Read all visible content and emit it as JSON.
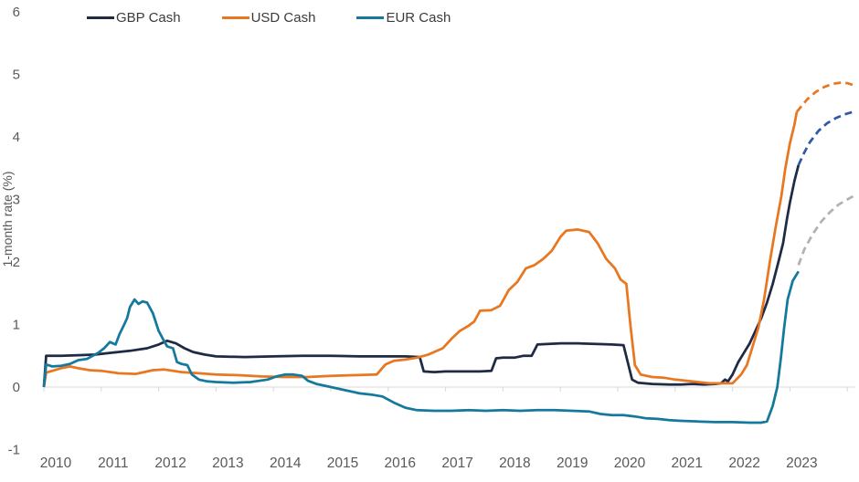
{
  "colors": {
    "gbp": "#1f2b45",
    "usd": "#e87722",
    "eur": "#15799d",
    "gbp_forecast": "#2e5aa7",
    "usd_forecast": "#e87722",
    "eur_forecast": "#b2b2b2",
    "grid": "#d9d9d9",
    "axis_text": "#595959",
    "legend_text": "#3b3b3b"
  },
  "chart_data": {
    "type": "line",
    "title": "",
    "xlabel": "",
    "ylabel": "1-month rate (%)",
    "ylim": [
      -1,
      6
    ],
    "xlim": [
      2010,
      2024.2
    ],
    "y_ticks": [
      6,
      5,
      4,
      3,
      2,
      1,
      0,
      -1
    ],
    "x_ticks": [
      2010,
      2011,
      2012,
      2013,
      2014,
      2015,
      2016,
      2017,
      2018,
      2019,
      2020,
      2021,
      2022,
      2023
    ],
    "grid": "horizontal zero-line only, light gray, with small year tick marks below it",
    "legend_position": "top-left, horizontal",
    "note_style": "solid lines are history; dashed lines from early 2023 onward are forecasts (GBP forecast in blue, USD forecast in orange, EUR forecast in gray)",
    "series": [
      {
        "id": "gbp-cash",
        "name": "GBP Cash",
        "color": "#1f2b45",
        "style": "solid",
        "points": [
          [
            2010.0,
            0.0
          ],
          [
            2010.04,
            0.5
          ],
          [
            2010.3,
            0.5
          ],
          [
            2010.6,
            0.51
          ],
          [
            2010.9,
            0.52
          ],
          [
            2011.2,
            0.55
          ],
          [
            2011.5,
            0.58
          ],
          [
            2011.8,
            0.62
          ],
          [
            2012.0,
            0.68
          ],
          [
            2012.15,
            0.74
          ],
          [
            2012.3,
            0.7
          ],
          [
            2012.45,
            0.62
          ],
          [
            2012.6,
            0.56
          ],
          [
            2012.8,
            0.52
          ],
          [
            2013.0,
            0.49
          ],
          [
            2013.5,
            0.48
          ],
          [
            2014.0,
            0.49
          ],
          [
            2014.5,
            0.5
          ],
          [
            2015.0,
            0.5
          ],
          [
            2015.5,
            0.49
          ],
          [
            2016.0,
            0.49
          ],
          [
            2016.3,
            0.49
          ],
          [
            2016.55,
            0.48
          ],
          [
            2016.62,
            0.25
          ],
          [
            2016.8,
            0.24
          ],
          [
            2017.0,
            0.25
          ],
          [
            2017.3,
            0.25
          ],
          [
            2017.6,
            0.25
          ],
          [
            2017.8,
            0.26
          ],
          [
            2017.88,
            0.46
          ],
          [
            2018.0,
            0.47
          ],
          [
            2018.2,
            0.47
          ],
          [
            2018.35,
            0.5
          ],
          [
            2018.5,
            0.5
          ],
          [
            2018.6,
            0.68
          ],
          [
            2018.8,
            0.69
          ],
          [
            2019.0,
            0.7
          ],
          [
            2019.3,
            0.7
          ],
          [
            2019.6,
            0.69
          ],
          [
            2019.9,
            0.68
          ],
          [
            2020.1,
            0.67
          ],
          [
            2020.2,
            0.3
          ],
          [
            2020.25,
            0.12
          ],
          [
            2020.35,
            0.07
          ],
          [
            2020.6,
            0.05
          ],
          [
            2020.9,
            0.04
          ],
          [
            2021.1,
            0.04
          ],
          [
            2021.3,
            0.05
          ],
          [
            2021.5,
            0.04
          ],
          [
            2021.7,
            0.05
          ],
          [
            2021.8,
            0.06
          ],
          [
            2021.87,
            0.12
          ],
          [
            2021.92,
            0.09
          ],
          [
            2022.0,
            0.2
          ],
          [
            2022.1,
            0.4
          ],
          [
            2022.2,
            0.55
          ],
          [
            2022.3,
            0.7
          ],
          [
            2022.4,
            0.9
          ],
          [
            2022.5,
            1.1
          ],
          [
            2022.6,
            1.35
          ],
          [
            2022.7,
            1.65
          ],
          [
            2022.8,
            2.0
          ],
          [
            2022.88,
            2.3
          ],
          [
            2022.95,
            2.7
          ],
          [
            2023.0,
            2.95
          ],
          [
            2023.08,
            3.3
          ],
          [
            2023.15,
            3.55
          ]
        ]
      },
      {
        "id": "usd-cash",
        "name": "USD Cash",
        "color": "#e87722",
        "style": "solid",
        "points": [
          [
            2010.0,
            0.0
          ],
          [
            2010.04,
            0.23
          ],
          [
            2010.15,
            0.26
          ],
          [
            2010.3,
            0.3
          ],
          [
            2010.45,
            0.33
          ],
          [
            2010.6,
            0.3
          ],
          [
            2010.8,
            0.27
          ],
          [
            2011.0,
            0.26
          ],
          [
            2011.3,
            0.22
          ],
          [
            2011.6,
            0.21
          ],
          [
            2011.9,
            0.27
          ],
          [
            2012.1,
            0.28
          ],
          [
            2012.4,
            0.24
          ],
          [
            2012.7,
            0.22
          ],
          [
            2013.0,
            0.2
          ],
          [
            2013.4,
            0.19
          ],
          [
            2013.8,
            0.17
          ],
          [
            2014.2,
            0.16
          ],
          [
            2014.6,
            0.16
          ],
          [
            2015.0,
            0.18
          ],
          [
            2015.4,
            0.19
          ],
          [
            2015.8,
            0.2
          ],
          [
            2015.95,
            0.36
          ],
          [
            2016.1,
            0.42
          ],
          [
            2016.3,
            0.44
          ],
          [
            2016.5,
            0.47
          ],
          [
            2016.7,
            0.52
          ],
          [
            2016.95,
            0.62
          ],
          [
            2017.1,
            0.77
          ],
          [
            2017.25,
            0.9
          ],
          [
            2017.4,
            0.98
          ],
          [
            2017.5,
            1.05
          ],
          [
            2017.6,
            1.22
          ],
          [
            2017.8,
            1.23
          ],
          [
            2017.95,
            1.3
          ],
          [
            2018.1,
            1.55
          ],
          [
            2018.25,
            1.68
          ],
          [
            2018.4,
            1.9
          ],
          [
            2018.55,
            1.95
          ],
          [
            2018.7,
            2.05
          ],
          [
            2018.85,
            2.18
          ],
          [
            2019.0,
            2.4
          ],
          [
            2019.1,
            2.5
          ],
          [
            2019.3,
            2.52
          ],
          [
            2019.5,
            2.48
          ],
          [
            2019.65,
            2.3
          ],
          [
            2019.8,
            2.05
          ],
          [
            2019.95,
            1.9
          ],
          [
            2020.05,
            1.72
          ],
          [
            2020.15,
            1.65
          ],
          [
            2020.22,
            1.0
          ],
          [
            2020.3,
            0.35
          ],
          [
            2020.4,
            0.2
          ],
          [
            2020.6,
            0.16
          ],
          [
            2020.8,
            0.15
          ],
          [
            2021.0,
            0.12
          ],
          [
            2021.2,
            0.1
          ],
          [
            2021.4,
            0.08
          ],
          [
            2021.6,
            0.06
          ],
          [
            2021.8,
            0.06
          ],
          [
            2022.0,
            0.06
          ],
          [
            2022.15,
            0.2
          ],
          [
            2022.25,
            0.35
          ],
          [
            2022.35,
            0.65
          ],
          [
            2022.45,
            0.95
          ],
          [
            2022.55,
            1.4
          ],
          [
            2022.65,
            2.0
          ],
          [
            2022.75,
            2.55
          ],
          [
            2022.85,
            3.05
          ],
          [
            2022.92,
            3.5
          ],
          [
            2023.0,
            3.9
          ],
          [
            2023.08,
            4.2
          ],
          [
            2023.12,
            4.4
          ]
        ]
      },
      {
        "id": "eur-cash",
        "name": "EUR Cash",
        "color": "#15799d",
        "style": "solid",
        "points": [
          [
            2010.0,
            0.0
          ],
          [
            2010.04,
            0.36
          ],
          [
            2010.15,
            0.33
          ],
          [
            2010.3,
            0.34
          ],
          [
            2010.45,
            0.37
          ],
          [
            2010.6,
            0.43
          ],
          [
            2010.75,
            0.45
          ],
          [
            2010.85,
            0.5
          ],
          [
            2010.95,
            0.55
          ],
          [
            2011.05,
            0.62
          ],
          [
            2011.15,
            0.72
          ],
          [
            2011.25,
            0.68
          ],
          [
            2011.32,
            0.85
          ],
          [
            2011.4,
            1.0
          ],
          [
            2011.45,
            1.1
          ],
          [
            2011.5,
            1.28
          ],
          [
            2011.58,
            1.4
          ],
          [
            2011.65,
            1.33
          ],
          [
            2011.72,
            1.37
          ],
          [
            2011.8,
            1.35
          ],
          [
            2011.9,
            1.18
          ],
          [
            2012.0,
            0.9
          ],
          [
            2012.08,
            0.76
          ],
          [
            2012.15,
            0.65
          ],
          [
            2012.25,
            0.62
          ],
          [
            2012.32,
            0.4
          ],
          [
            2012.4,
            0.37
          ],
          [
            2012.5,
            0.35
          ],
          [
            2012.58,
            0.2
          ],
          [
            2012.7,
            0.12
          ],
          [
            2012.85,
            0.09
          ],
          [
            2013.0,
            0.08
          ],
          [
            2013.3,
            0.07
          ],
          [
            2013.6,
            0.08
          ],
          [
            2013.9,
            0.12
          ],
          [
            2014.05,
            0.17
          ],
          [
            2014.2,
            0.2
          ],
          [
            2014.35,
            0.2
          ],
          [
            2014.5,
            0.18
          ],
          [
            2014.6,
            0.1
          ],
          [
            2014.75,
            0.05
          ],
          [
            2014.9,
            0.02
          ],
          [
            2015.1,
            -0.02
          ],
          [
            2015.3,
            -0.06
          ],
          [
            2015.5,
            -0.1
          ],
          [
            2015.7,
            -0.12
          ],
          [
            2015.9,
            -0.15
          ],
          [
            2016.1,
            -0.25
          ],
          [
            2016.3,
            -0.33
          ],
          [
            2016.5,
            -0.37
          ],
          [
            2016.8,
            -0.38
          ],
          [
            2017.1,
            -0.38
          ],
          [
            2017.4,
            -0.37
          ],
          [
            2017.7,
            -0.38
          ],
          [
            2018.0,
            -0.37
          ],
          [
            2018.3,
            -0.38
          ],
          [
            2018.6,
            -0.37
          ],
          [
            2018.9,
            -0.37
          ],
          [
            2019.2,
            -0.38
          ],
          [
            2019.5,
            -0.39
          ],
          [
            2019.7,
            -0.43
          ],
          [
            2019.9,
            -0.45
          ],
          [
            2020.1,
            -0.45
          ],
          [
            2020.3,
            -0.47
          ],
          [
            2020.5,
            -0.5
          ],
          [
            2020.7,
            -0.51
          ],
          [
            2020.9,
            -0.53
          ],
          [
            2021.1,
            -0.54
          ],
          [
            2021.4,
            -0.55
          ],
          [
            2021.7,
            -0.56
          ],
          [
            2022.0,
            -0.56
          ],
          [
            2022.3,
            -0.57
          ],
          [
            2022.5,
            -0.57
          ],
          [
            2022.6,
            -0.55
          ],
          [
            2022.7,
            -0.3
          ],
          [
            2022.78,
            0.0
          ],
          [
            2022.84,
            0.45
          ],
          [
            2022.9,
            0.95
          ],
          [
            2022.96,
            1.4
          ],
          [
            2023.05,
            1.7
          ],
          [
            2023.15,
            1.85
          ]
        ]
      }
    ],
    "forecast_series": [
      {
        "id": "gbp-cash-forecast",
        "name": "GBP Cash forecast",
        "color": "#2e5aa7",
        "style": "dashed",
        "points": [
          [
            2023.15,
            3.55
          ],
          [
            2023.25,
            3.75
          ],
          [
            2023.35,
            3.92
          ],
          [
            2023.5,
            4.1
          ],
          [
            2023.65,
            4.22
          ],
          [
            2023.8,
            4.3
          ],
          [
            2023.95,
            4.36
          ],
          [
            2024.1,
            4.4
          ]
        ]
      },
      {
        "id": "usd-cash-forecast",
        "name": "USD Cash forecast",
        "color": "#e87722",
        "style": "dashed",
        "points": [
          [
            2023.12,
            4.4
          ],
          [
            2023.3,
            4.6
          ],
          [
            2023.45,
            4.72
          ],
          [
            2023.6,
            4.8
          ],
          [
            2023.75,
            4.85
          ],
          [
            2023.9,
            4.87
          ],
          [
            2024.0,
            4.86
          ],
          [
            2024.1,
            4.83
          ]
        ]
      },
      {
        "id": "eur-cash-forecast",
        "name": "EUR Cash forecast",
        "color": "#b2b2b2",
        "style": "dashed",
        "points": [
          [
            2023.15,
            1.95
          ],
          [
            2023.25,
            2.2
          ],
          [
            2023.4,
            2.45
          ],
          [
            2023.55,
            2.65
          ],
          [
            2023.7,
            2.8
          ],
          [
            2023.85,
            2.92
          ],
          [
            2024.0,
            3.0
          ],
          [
            2024.1,
            3.05
          ]
        ]
      }
    ]
  }
}
